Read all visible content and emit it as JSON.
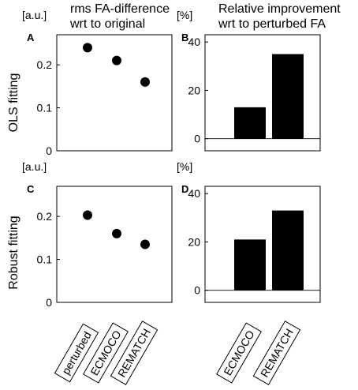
{
  "figure": {
    "column_titles": [
      [
        "rms FA-difference",
        "wrt to original"
      ],
      [
        "Relative improvement",
        "wrt to perturbed FA"
      ]
    ],
    "row_labels": [
      "OLS fitting",
      "Robust fitting"
    ]
  },
  "chart_data": [
    {
      "panel": "A",
      "type": "scatter",
      "ylabel": "[a.u.]",
      "categories": [
        "perturbed",
        "ECMOCO",
        "REMATCH"
      ],
      "values": [
        0.24,
        0.21,
        0.16
      ],
      "ylim": [
        0,
        0.27
      ],
      "yticks": [
        0,
        0.1,
        0.2
      ],
      "xlabels_shown": false,
      "marker_color": "#000000"
    },
    {
      "panel": "B",
      "type": "bar",
      "ylabel": "[%]",
      "categories": [
        "ECMOCO",
        "REMATCH"
      ],
      "values": [
        13,
        35
      ],
      "ylim": [
        -5,
        43
      ],
      "yticks": [
        0,
        20,
        40
      ],
      "xlabels_shown": false,
      "zero_line": true,
      "bar_color": "#000000"
    },
    {
      "panel": "C",
      "type": "scatter",
      "ylabel": "[a.u.]",
      "categories": [
        "perturbed",
        "ECMOCO",
        "REMATCH"
      ],
      "values": [
        0.203,
        0.16,
        0.135
      ],
      "ylim": [
        0,
        0.27
      ],
      "yticks": [
        0,
        0.1,
        0.2
      ],
      "xlabels_shown": true,
      "marker_color": "#000000"
    },
    {
      "panel": "D",
      "type": "bar",
      "ylabel": "[%]",
      "categories": [
        "ECMOCO",
        "REMATCH"
      ],
      "values": [
        21,
        33
      ],
      "ylim": [
        -5,
        43
      ],
      "yticks": [
        0,
        20,
        40
      ],
      "xlabels_shown": true,
      "zero_line": true,
      "bar_color": "#000000"
    }
  ]
}
